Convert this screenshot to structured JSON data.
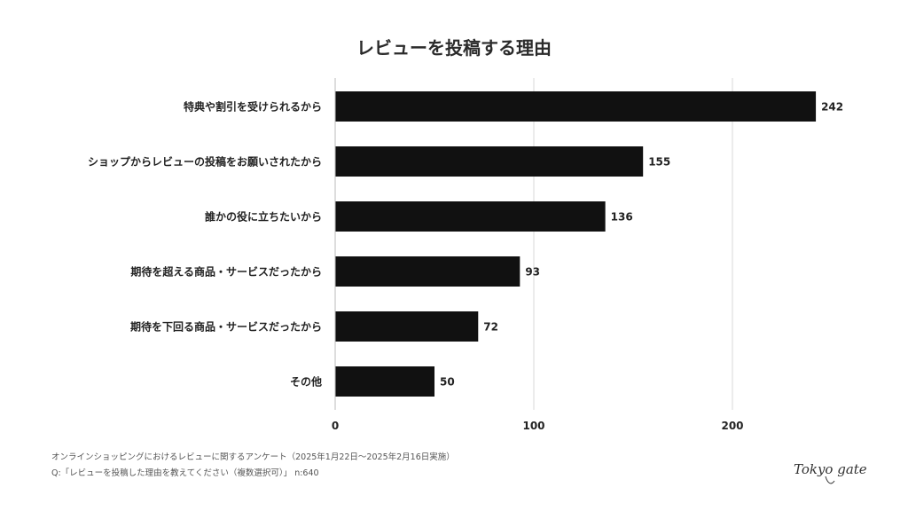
{
  "chart_data": {
    "type": "bar",
    "orientation": "horizontal",
    "title": "レビューを投稿する理由",
    "categories": [
      "特典や割引を受けられるから",
      "ショップからレビューの投稿をお願いされたから",
      "誰かの役に立ちたいから",
      "期待を超える商品・サービスだったから",
      "期待を下回る商品・サービスだったから",
      "その他"
    ],
    "values": [
      242,
      155,
      136,
      93,
      72,
      50
    ],
    "xlim": [
      0,
      250
    ],
    "xticks": [
      0,
      100,
      200
    ],
    "grid": true,
    "bar_color": "#111111",
    "grid_color": "#d9d9d9"
  },
  "footer": {
    "survey": "オンラインショッピングにおけるレビューに関するアンケート（2025年1月22日〜2025年2月16日実施）",
    "question": "Q:「レビューを投稿した理由を教えてください（複数選択可）」 n:640"
  },
  "logo": {
    "text": "Tokyo gate"
  }
}
